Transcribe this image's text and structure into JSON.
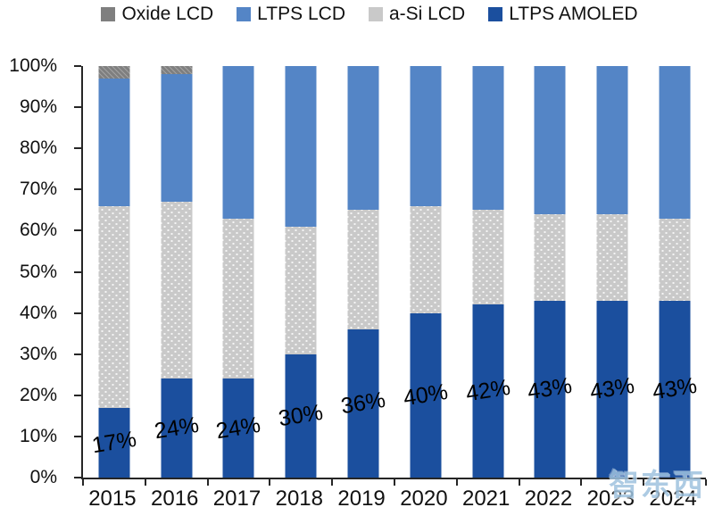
{
  "chart_data": {
    "type": "bar",
    "stacked": true,
    "title": "",
    "xlabel": "",
    "ylabel": "",
    "ylim": [
      0,
      100
    ],
    "grid": false,
    "legend_position": "top",
    "categories": [
      "2015",
      "2016",
      "2017",
      "2018",
      "2019",
      "2020",
      "2021",
      "2022",
      "2023",
      "2024"
    ],
    "series": [
      {
        "name": "LTPS AMOLED",
        "color": "#1B4F9E",
        "pattern": "solid",
        "values": [
          17,
          24,
          24,
          30,
          36,
          40,
          42,
          43,
          43,
          43
        ]
      },
      {
        "name": "a-Si LCD",
        "color": "#C9C9C9",
        "pattern": "dots",
        "values": [
          49,
          43,
          39,
          31,
          29,
          26,
          23,
          21,
          21,
          20
        ]
      },
      {
        "name": "LTPS LCD",
        "color": "#5485C6",
        "pattern": "solid",
        "values": [
          31,
          31,
          37,
          39,
          35,
          34,
          35,
          36,
          36,
          37
        ]
      },
      {
        "name": "Oxide LCD",
        "color": "#7F7F7F",
        "pattern": "diag",
        "values": [
          3,
          2,
          0,
          0,
          0,
          0,
          0,
          0,
          0,
          0
        ]
      }
    ],
    "bar_labels": [
      "17%",
      "24%",
      "24%",
      "30%",
      "36%",
      "40%",
      "42%",
      "43%",
      "43%",
      "43%"
    ],
    "y_ticks": [
      "100%",
      "90%",
      "80%",
      "70%",
      "60%",
      "50%",
      "40%",
      "30%",
      "20%",
      "10%",
      "0%"
    ]
  },
  "legend": {
    "items": [
      {
        "label": "Oxide LCD",
        "color": "#7F7F7F"
      },
      {
        "label": "LTPS LCD",
        "color": "#5485C6"
      },
      {
        "label": "a-Si LCD",
        "color": "#C9C9C9"
      },
      {
        "label": "LTPS AMOLED",
        "color": "#1B4F9E"
      }
    ]
  },
  "watermark": {
    "text": "智东西",
    "color": "#9FC3DF"
  }
}
